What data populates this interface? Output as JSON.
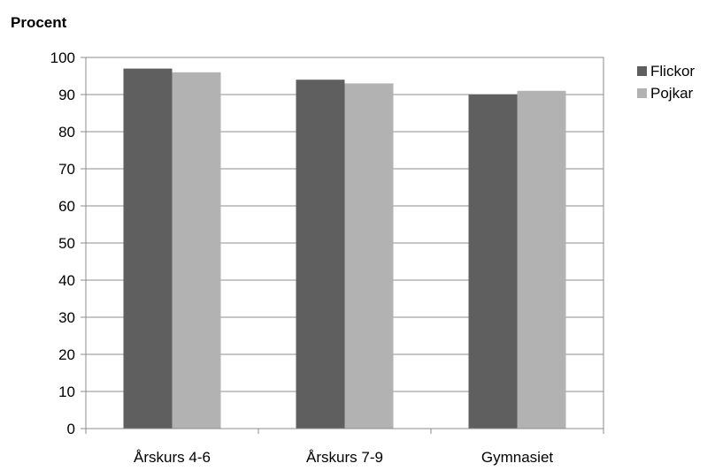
{
  "chart_data": {
    "type": "bar",
    "ylabel": "Procent",
    "xlabel": "",
    "title": "",
    "categories": [
      "Årskurs 4-6",
      "Årskurs 7-9",
      "Gymnasiet"
    ],
    "series": [
      {
        "name": "Flickor",
        "values": [
          97,
          94,
          90
        ],
        "color": "#5f5f5f"
      },
      {
        "name": "Pojkar",
        "values": [
          96,
          93,
          91
        ],
        "color": "#b2b2b2"
      }
    ],
    "ylim": [
      0,
      100
    ],
    "yticks": [
      0,
      10,
      20,
      30,
      40,
      50,
      60,
      70,
      80,
      90,
      100
    ],
    "grid": true,
    "legend_position": "right"
  }
}
